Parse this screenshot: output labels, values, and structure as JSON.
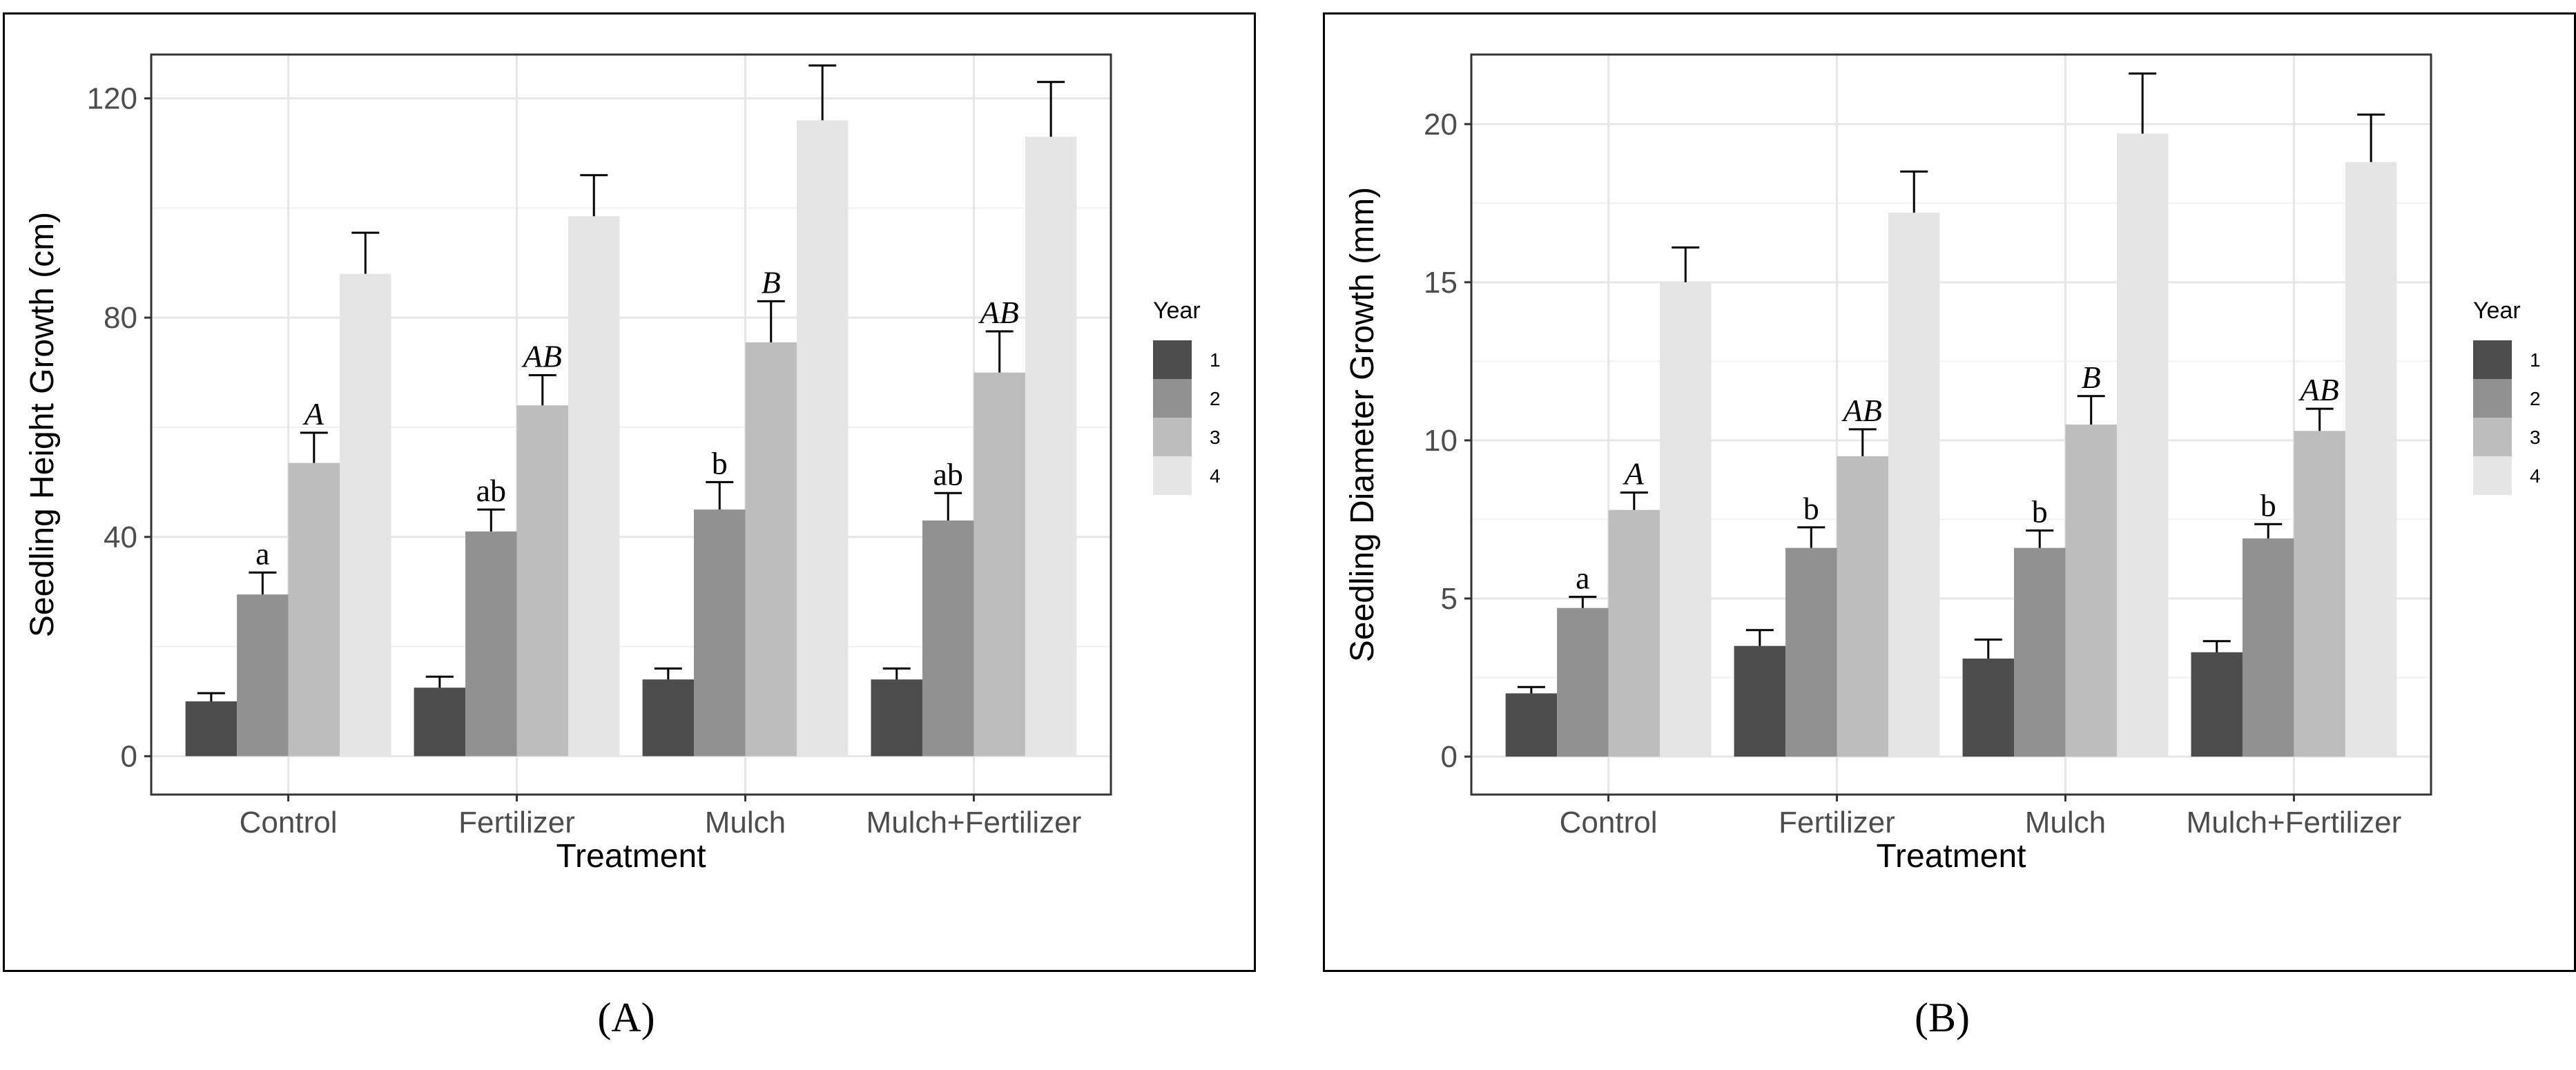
{
  "figure": {
    "caption_a": "(A)",
    "caption_b": "(B)"
  },
  "chart_data": [
    {
      "type": "bar",
      "panel": "A",
      "categories": [
        "Control",
        "Fertilizer",
        "Mulch",
        "Mulch+Fertilizer"
      ],
      "xlabel": "Treatment",
      "ylabel": "Seedling Height Growth (cm)",
      "ylim": [
        -7,
        128
      ],
      "yticks": [
        0,
        40,
        80,
        120
      ],
      "legend_title": "Year",
      "legend_position": "right",
      "grid": true,
      "series": [
        {
          "name": "1",
          "color": "#4d4d4d",
          "values": [
            10,
            12.5,
            14,
            14
          ],
          "errors": [
            1.5,
            2,
            2,
            2
          ],
          "labels": [
            "",
            "",
            "",
            ""
          ],
          "label_style": "upright"
        },
        {
          "name": "2",
          "color": "#919191",
          "values": [
            29.5,
            41,
            45,
            43
          ],
          "errors": [
            4,
            4,
            5,
            5
          ],
          "labels": [
            "a",
            "ab",
            "b",
            "ab"
          ],
          "label_style": "upright"
        },
        {
          "name": "3",
          "color": "#bdbdbd",
          "values": [
            53.5,
            64,
            75.5,
            70
          ],
          "errors": [
            5.5,
            5.5,
            7.5,
            7.5
          ],
          "labels": [
            "A",
            "AB",
            "B",
            "AB"
          ],
          "label_style": "italic"
        },
        {
          "name": "4",
          "color": "#e5e5e5",
          "values": [
            88,
            98.5,
            116,
            113
          ],
          "errors": [
            7.5,
            7.5,
            10,
            10
          ],
          "labels": [
            "",
            "",
            "",
            ""
          ],
          "label_style": "upright"
        }
      ]
    },
    {
      "type": "bar",
      "panel": "B",
      "categories": [
        "Control",
        "Fertilizer",
        "Mulch",
        "Mulch+Fertilizer"
      ],
      "xlabel": "Treatment",
      "ylabel": "Seedling Diameter Growth (mm)",
      "ylim": [
        -1.2,
        22.2
      ],
      "yticks": [
        0,
        5,
        10,
        15,
        20
      ],
      "legend_title": "Year",
      "legend_position": "right",
      "grid": true,
      "series": [
        {
          "name": "1",
          "color": "#4d4d4d",
          "values": [
            2,
            3.5,
            3.1,
            3.3
          ],
          "errors": [
            0.2,
            0.5,
            0.6,
            0.35
          ],
          "labels": [
            "",
            "",
            "",
            ""
          ],
          "label_style": "upright"
        },
        {
          "name": "2",
          "color": "#919191",
          "values": [
            4.7,
            6.6,
            6.6,
            6.9
          ],
          "errors": [
            0.35,
            0.65,
            0.55,
            0.45
          ],
          "labels": [
            "a",
            "b",
            "b",
            "b"
          ],
          "label_style": "upright"
        },
        {
          "name": "3",
          "color": "#bdbdbd",
          "values": [
            7.8,
            9.5,
            10.5,
            10.3
          ],
          "errors": [
            0.55,
            0.85,
            0.9,
            0.7
          ],
          "labels": [
            "A",
            "AB",
            "B",
            "AB"
          ],
          "label_style": "italic"
        },
        {
          "name": "4",
          "color": "#e5e5e5",
          "values": [
            15,
            17.2,
            19.7,
            18.8
          ],
          "errors": [
            1.1,
            1.3,
            1.9,
            1.5
          ],
          "labels": [
            "",
            "",
            "",
            ""
          ],
          "label_style": "upright"
        }
      ]
    }
  ]
}
